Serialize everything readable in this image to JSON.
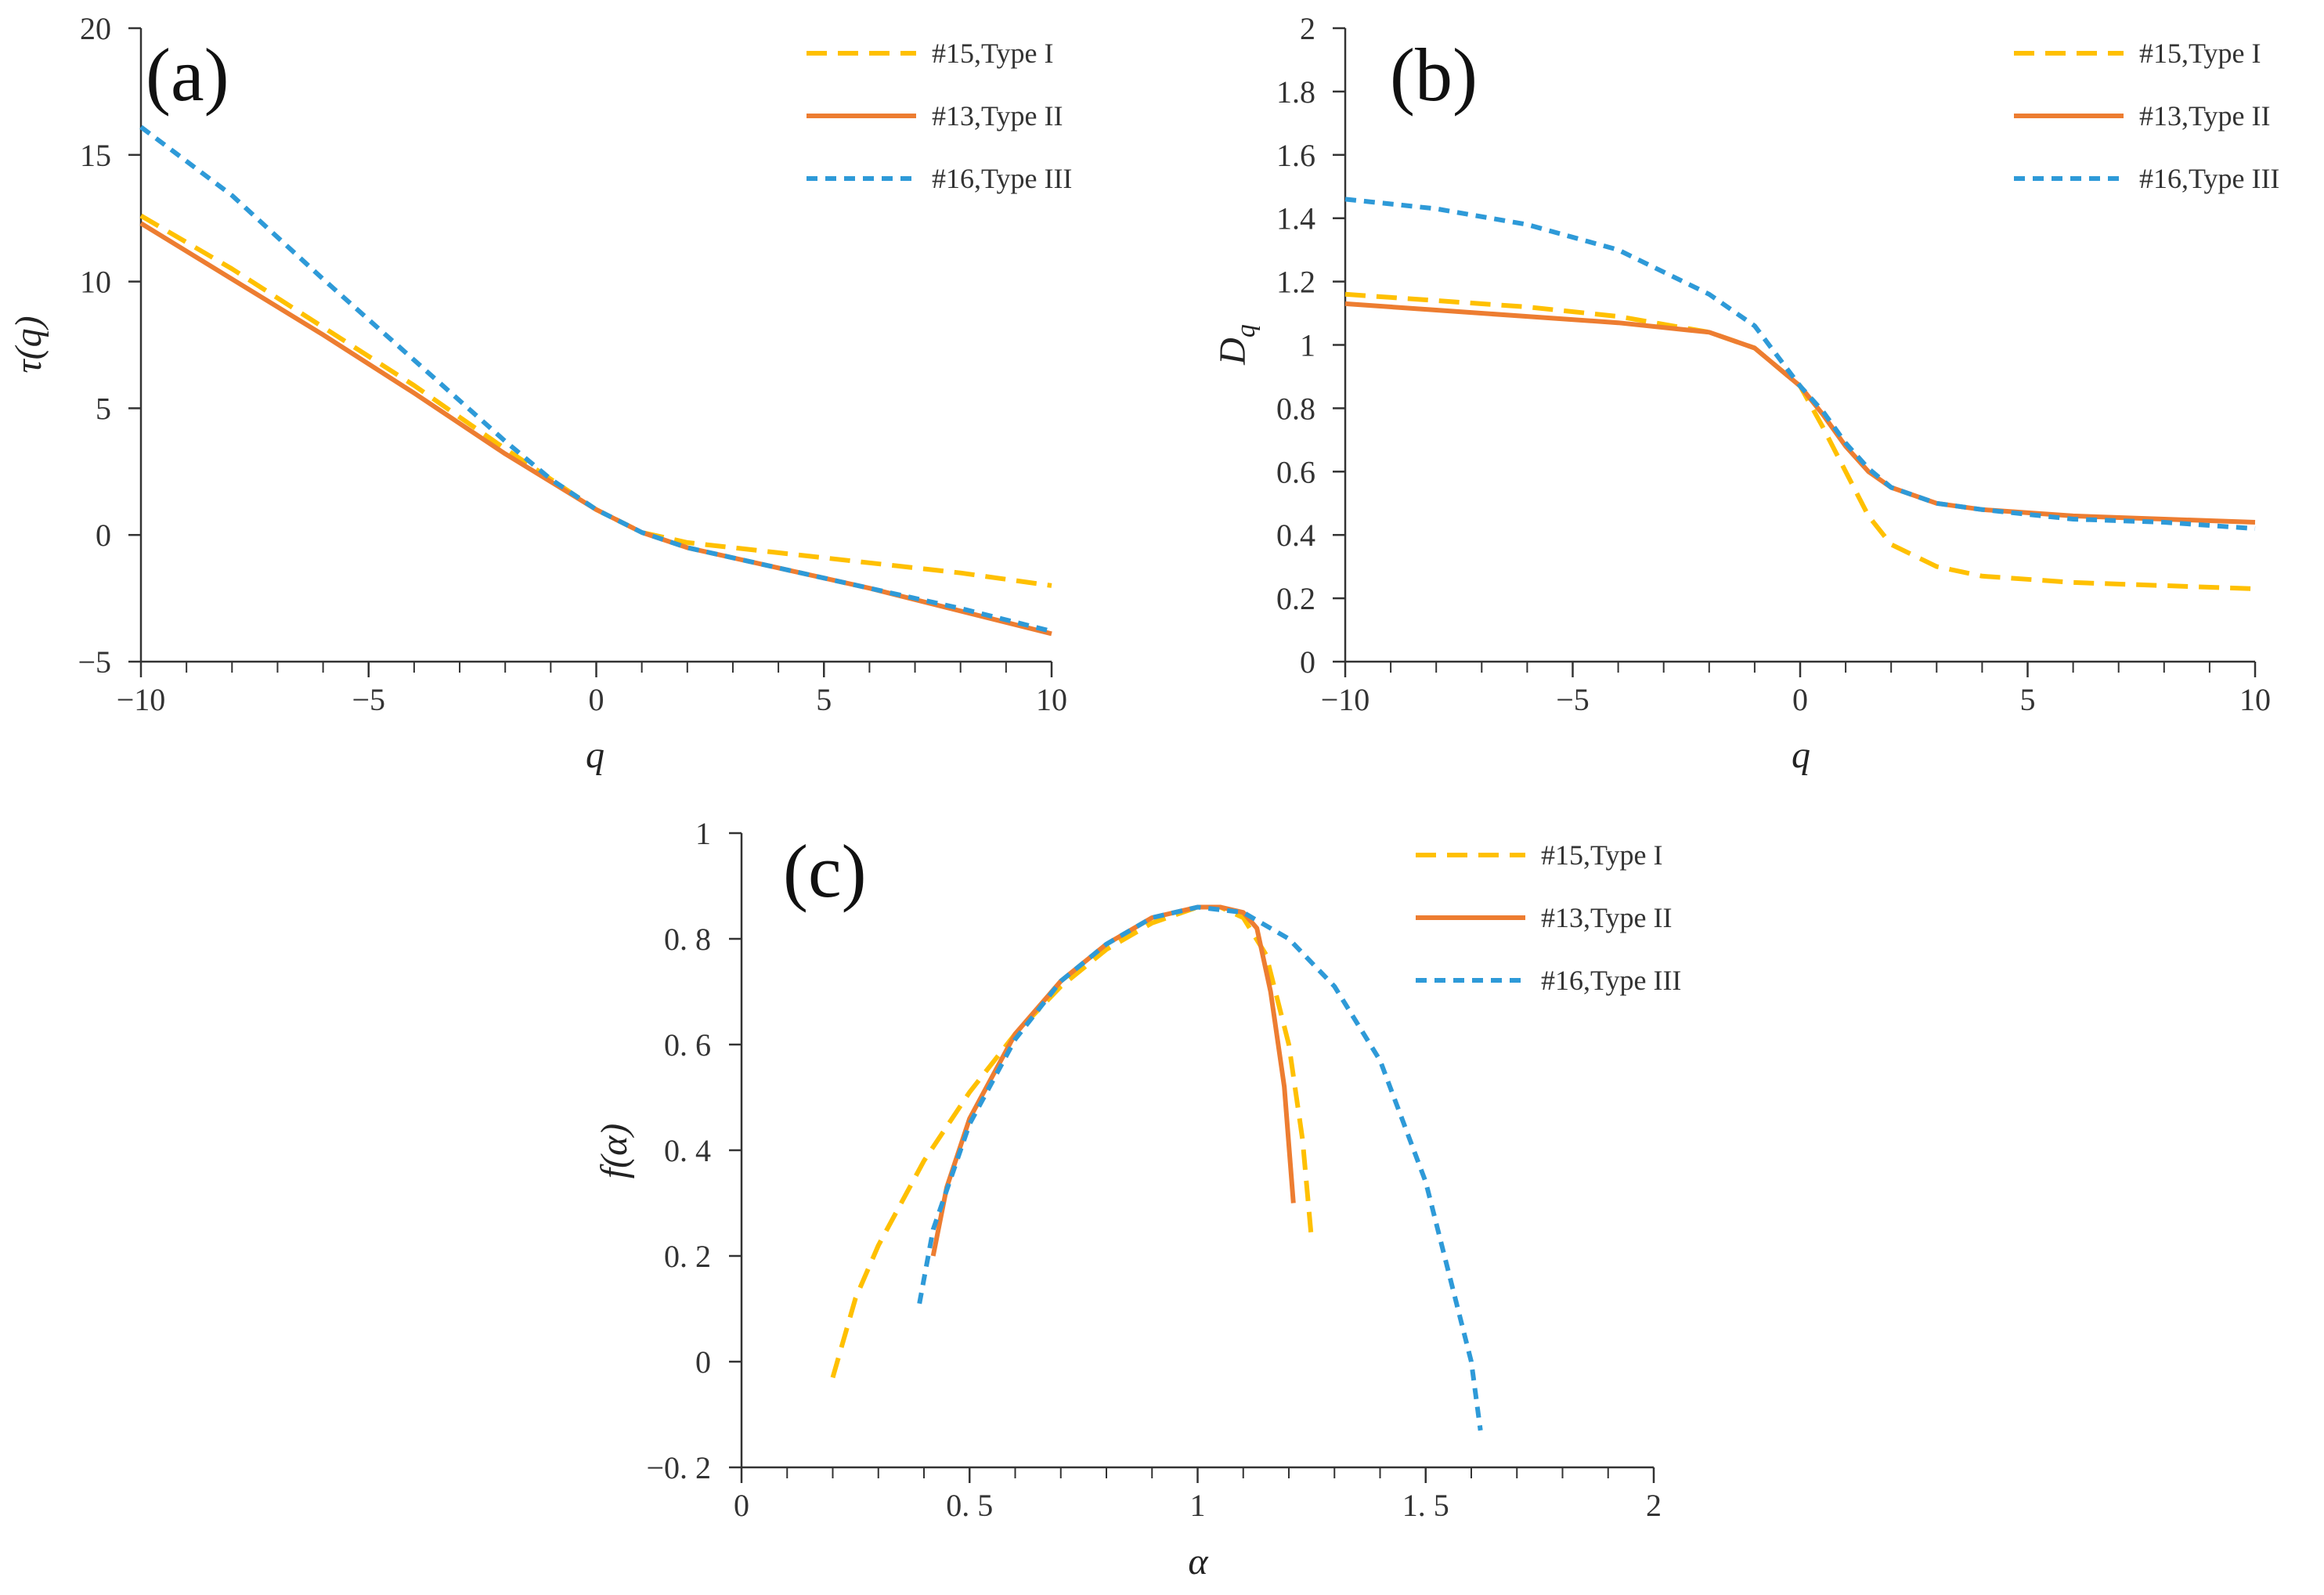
{
  "chart_data": [
    {
      "type": "line",
      "panel_label": "(a)",
      "xlabel": "q",
      "ylabel": "τ(q)",
      "xlim": [
        -10,
        10
      ],
      "ylim": [
        -5,
        20
      ],
      "xticks": [
        -10,
        -5,
        0,
        5,
        10
      ],
      "xtick_labels": [
        "−10",
        "−5",
        "0",
        "5",
        "10"
      ],
      "yticks": [
        -5,
        0,
        5,
        10,
        15,
        20
      ],
      "ytick_labels": [
        "−5",
        "0",
        "5",
        "10",
        "15",
        "20"
      ],
      "grid": false,
      "legend_position": "top-right",
      "x": [
        -10,
        -8,
        -6,
        -4,
        -2,
        -1,
        0,
        1,
        2,
        4,
        6,
        8,
        10
      ],
      "series": [
        {
          "name": "#15,Type I",
          "color": "#FFC000",
          "dash": "long",
          "values": [
            12.6,
            10.5,
            8.2,
            5.9,
            3.4,
            2.2,
            1.0,
            0.1,
            -0.3,
            -0.7,
            -1.1,
            -1.5,
            -2.0
          ]
        },
        {
          "name": "#13,Type II",
          "color": "#ED7D31",
          "dash": "solid",
          "values": [
            12.3,
            10.1,
            7.9,
            5.6,
            3.2,
            2.1,
            1.0,
            0.1,
            -0.5,
            -1.3,
            -2.1,
            -3.0,
            -3.9
          ]
        },
        {
          "name": "#16,Type III",
          "color": "#2E9AD8",
          "dash": "short",
          "values": [
            16.1,
            13.4,
            10.1,
            6.9,
            3.7,
            2.2,
            1.0,
            0.1,
            -0.5,
            -1.3,
            -2.1,
            -2.9,
            -3.8
          ]
        }
      ]
    },
    {
      "type": "line",
      "panel_label": "(b)",
      "xlabel": "q",
      "ylabel": "D",
      "ylabel_sub": "q",
      "xlim": [
        -10,
        10
      ],
      "ylim": [
        0,
        2
      ],
      "xticks": [
        -10,
        -5,
        0,
        5,
        10
      ],
      "xtick_labels": [
        "−10",
        "−5",
        "0",
        "5",
        "10"
      ],
      "yticks": [
        0,
        0.2,
        0.4,
        0.6,
        0.8,
        1,
        1.2,
        1.4,
        1.6,
        1.8,
        2
      ],
      "ytick_labels": [
        "0",
        "0.2",
        "0.4",
        "0.6",
        "0.8",
        "1",
        "1.2",
        "1.4",
        "1.6",
        "1.8",
        "2"
      ],
      "grid": false,
      "legend_position": "top-right",
      "x": [
        -10,
        -8,
        -6,
        -4,
        -2,
        -1,
        0,
        0.5,
        1,
        1.5,
        2,
        3,
        4,
        6,
        8,
        10
      ],
      "series": [
        {
          "name": "#15,Type I",
          "color": "#FFC000",
          "dash": "long",
          "values": [
            1.16,
            1.14,
            1.12,
            1.09,
            1.04,
            0.99,
            0.87,
            0.74,
            0.6,
            0.46,
            0.37,
            0.3,
            0.27,
            0.25,
            0.24,
            0.23
          ]
        },
        {
          "name": "#13,Type II",
          "color": "#ED7D31",
          "dash": "solid",
          "values": [
            1.13,
            1.11,
            1.09,
            1.07,
            1.04,
            0.99,
            0.87,
            0.78,
            0.68,
            0.6,
            0.55,
            0.5,
            0.48,
            0.46,
            0.45,
            0.44
          ]
        },
        {
          "name": "#16,Type III",
          "color": "#2E9AD8",
          "dash": "short",
          "values": [
            1.46,
            1.43,
            1.38,
            1.3,
            1.16,
            1.06,
            0.87,
            0.79,
            0.69,
            0.61,
            0.55,
            0.5,
            0.48,
            0.45,
            0.44,
            0.42
          ]
        }
      ]
    },
    {
      "type": "line",
      "panel_label": "(c)",
      "xlabel": "α",
      "ylabel": "f(α)",
      "xlim": [
        0,
        2
      ],
      "ylim": [
        -0.2,
        1
      ],
      "xticks": [
        0,
        0.5,
        1,
        1.5,
        2
      ],
      "xtick_labels": [
        "0",
        "0. 5",
        "1",
        "1. 5",
        "2"
      ],
      "yticks": [
        -0.2,
        0,
        0.2,
        0.4,
        0.6,
        0.8,
        1
      ],
      "ytick_labels": [
        "−0. 2",
        "0",
        "0. 2",
        "0. 4",
        "0. 6",
        "0. 8",
        "1"
      ],
      "grid": false,
      "legend_position": "top-right",
      "series": [
        {
          "name": "#15,Type I",
          "color": "#FFC000",
          "dash": "long",
          "x": [
            0.2,
            0.25,
            0.3,
            0.4,
            0.5,
            0.6,
            0.7,
            0.8,
            0.9,
            1.0,
            1.05,
            1.1,
            1.15,
            1.2,
            1.23,
            1.25
          ],
          "y": [
            -0.03,
            0.12,
            0.22,
            0.38,
            0.51,
            0.62,
            0.71,
            0.78,
            0.83,
            0.86,
            0.86,
            0.84,
            0.77,
            0.6,
            0.42,
            0.23
          ]
        },
        {
          "name": "#13,Type II",
          "color": "#ED7D31",
          "dash": "solid",
          "x": [
            0.42,
            0.45,
            0.5,
            0.6,
            0.7,
            0.8,
            0.9,
            1.0,
            1.05,
            1.1,
            1.13,
            1.16,
            1.19,
            1.21
          ],
          "y": [
            0.2,
            0.33,
            0.46,
            0.62,
            0.72,
            0.79,
            0.84,
            0.86,
            0.86,
            0.85,
            0.82,
            0.7,
            0.52,
            0.3
          ]
        },
        {
          "name": "#16,Type III",
          "color": "#2E9AD8",
          "dash": "short",
          "x": [
            0.39,
            0.42,
            0.5,
            0.6,
            0.7,
            0.8,
            0.9,
            1.0,
            1.1,
            1.2,
            1.3,
            1.4,
            1.5,
            1.55,
            1.6,
            1.62
          ],
          "y": [
            0.11,
            0.25,
            0.45,
            0.61,
            0.72,
            0.79,
            0.84,
            0.86,
            0.85,
            0.8,
            0.71,
            0.57,
            0.34,
            0.17,
            0.0,
            -0.13
          ]
        }
      ]
    }
  ]
}
